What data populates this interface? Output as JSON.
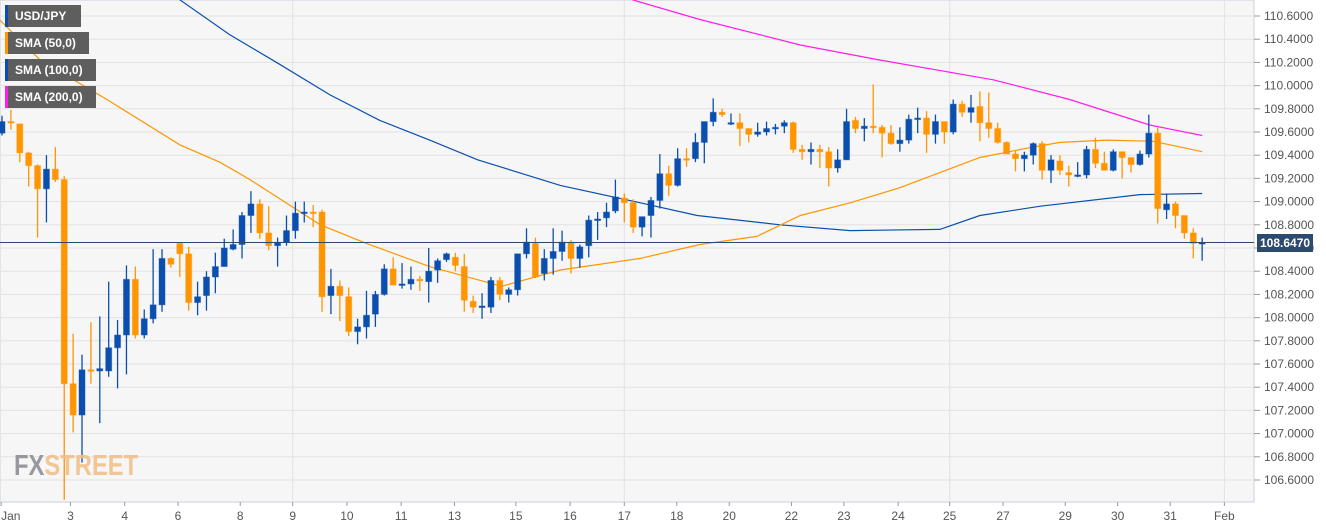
{
  "legend": {
    "symbol": "USD/JPY",
    "sma50": "SMA (50,0)",
    "sma100": "SMA (100,0)",
    "sma200": "SMA (200,0)"
  },
  "watermark": {
    "fx": "FX",
    "street": "STREET"
  },
  "colors": {
    "bull": "#0a4fae",
    "bear": "#ff9500",
    "sma50": "#ff9500",
    "sma100": "#0a4fae",
    "sma200": "#ff1ee8",
    "last_price_line": "#2c4a6e",
    "grid": "#e2e2e4",
    "background": "#f6f6f7"
  },
  "chart_data": {
    "type": "candlestick",
    "title": "USD/JPY",
    "timeframe_note": "",
    "ylim": [
      106.45,
      110.74
    ],
    "y_ticks": [
      "110.6000",
      "110.4000",
      "110.2000",
      "110.0000",
      "109.8000",
      "109.6000",
      "109.4000",
      "109.2000",
      "109.0000",
      "108.8000",
      "108.6000",
      "108.4000",
      "108.2000",
      "108.0000",
      "107.8000",
      "107.6000",
      "107.4000",
      "107.2000",
      "107.0000",
      "106.8000",
      "106.6000"
    ],
    "x_ticks": [
      {
        "label": "Jan",
        "at": -0.1
      },
      {
        "label": "3",
        "at": 7.7
      },
      {
        "label": "4",
        "at": 13.8
      },
      {
        "label": "6",
        "at": 19.8
      },
      {
        "label": "8",
        "at": 26.8
      },
      {
        "label": "9",
        "at": 32.7
      },
      {
        "label": "10",
        "at": 38.8
      },
      {
        "label": "11",
        "at": 44.9
      },
      {
        "label": "13",
        "at": 50.9
      },
      {
        "label": "15",
        "at": 57.8
      },
      {
        "label": "16",
        "at": 63.9
      },
      {
        "label": "17",
        "at": 70.0
      },
      {
        "label": "18",
        "at": 75.9
      },
      {
        "label": "20",
        "at": 81.8
      },
      {
        "label": "22",
        "at": 88.8
      },
      {
        "label": "23",
        "at": 94.7
      },
      {
        "label": "24",
        "at": 100.8
      },
      {
        "label": "25",
        "at": 106.6
      },
      {
        "label": "27",
        "at": 112.6
      },
      {
        "label": "29",
        "at": 119.6
      },
      {
        "label": "30",
        "at": 125.5
      },
      {
        "label": "31",
        "at": 131.4
      },
      {
        "label": "Feb",
        "at": 137.5
      }
    ],
    "vertical_grid_at": [
      "9",
      "17",
      "25",
      "Feb"
    ],
    "last_price": "108.6470",
    "last_price_value": 108.647,
    "candles_ohlc": [
      [
        109.59,
        109.74,
        109.57,
        109.69
      ],
      [
        109.69,
        109.79,
        109.62,
        109.68
      ],
      [
        109.67,
        109.67,
        109.34,
        109.42
      ],
      [
        109.42,
        109.43,
        109.13,
        109.31
      ],
      [
        109.31,
        109.32,
        108.69,
        109.11
      ],
      [
        109.11,
        109.4,
        108.82,
        109.28
      ],
      [
        109.28,
        109.47,
        109.17,
        109.19
      ],
      [
        109.19,
        109.22,
        106.43,
        107.43
      ],
      [
        107.43,
        107.86,
        107.01,
        107.16
      ],
      [
        107.16,
        107.68,
        106.75,
        107.55
      ],
      [
        107.55,
        107.96,
        107.43,
        107.54
      ],
      [
        107.54,
        108.01,
        107.09,
        107.56
      ],
      [
        107.54,
        108.31,
        107.49,
        107.74
      ],
      [
        107.74,
        107.98,
        107.39,
        107.85
      ],
      [
        107.85,
        108.45,
        107.51,
        108.33
      ],
      [
        108.33,
        108.44,
        107.82,
        107.85
      ],
      [
        107.85,
        108.07,
        107.82,
        107.99
      ],
      [
        107.99,
        108.59,
        107.95,
        108.11
      ],
      [
        108.11,
        108.59,
        108.05,
        108.51
      ],
      [
        108.51,
        108.52,
        108.43,
        108.46
      ],
      [
        108.64,
        108.64,
        108.35,
        108.55
      ],
      [
        108.55,
        108.61,
        108.06,
        108.13
      ],
      [
        108.13,
        108.31,
        108.02,
        108.18
      ],
      [
        108.19,
        108.4,
        108.06,
        108.35
      ],
      [
        108.35,
        108.56,
        108.21,
        108.44
      ],
      [
        108.44,
        108.68,
        108.44,
        108.6
      ],
      [
        108.59,
        108.76,
        108.58,
        108.63
      ],
      [
        108.63,
        108.91,
        108.51,
        108.88
      ],
      [
        108.88,
        109.09,
        108.73,
        108.98
      ],
      [
        108.98,
        109.02,
        108.68,
        108.73
      ],
      [
        108.73,
        108.96,
        108.58,
        108.62
      ],
      [
        108.62,
        108.69,
        108.44,
        108.65
      ],
      [
        108.65,
        108.88,
        108.62,
        108.75
      ],
      [
        108.75,
        109.0,
        108.68,
        108.9
      ],
      [
        108.9,
        109.0,
        108.82,
        108.91
      ],
      [
        108.91,
        108.97,
        108.78,
        108.9
      ],
      [
        108.91,
        108.93,
        108.05,
        108.18
      ],
      [
        108.19,
        108.42,
        108.03,
        108.27
      ],
      [
        108.27,
        108.32,
        107.97,
        108.19
      ],
      [
        108.18,
        108.26,
        107.84,
        107.88
      ],
      [
        107.88,
        107.99,
        107.77,
        107.92
      ],
      [
        107.92,
        108.23,
        107.82,
        108.02
      ],
      [
        108.03,
        108.23,
        107.92,
        108.2
      ],
      [
        108.2,
        108.46,
        108.19,
        108.42
      ],
      [
        108.42,
        108.52,
        108.28,
        108.28
      ],
      [
        108.28,
        108.47,
        108.25,
        108.29
      ],
      [
        108.29,
        108.44,
        108.24,
        108.33
      ],
      [
        108.33,
        108.36,
        108.23,
        108.32
      ],
      [
        108.31,
        108.6,
        108.13,
        108.4
      ],
      [
        108.41,
        108.51,
        108.3,
        108.49
      ],
      [
        108.5,
        108.56,
        108.48,
        108.55
      ],
      [
        108.52,
        108.56,
        108.4,
        108.45
      ],
      [
        108.44,
        108.55,
        108.05,
        108.15
      ],
      [
        108.14,
        108.19,
        108.04,
        108.09
      ],
      [
        108.09,
        108.21,
        107.99,
        108.1
      ],
      [
        108.09,
        108.35,
        108.04,
        108.32
      ],
      [
        108.32,
        108.35,
        108.15,
        108.2
      ],
      [
        108.2,
        108.26,
        108.13,
        108.24
      ],
      [
        108.24,
        108.55,
        108.19,
        108.55
      ],
      [
        108.55,
        108.77,
        108.51,
        108.65
      ],
      [
        108.64,
        108.69,
        108.34,
        108.35
      ],
      [
        108.38,
        108.59,
        108.32,
        108.51
      ],
      [
        108.51,
        108.77,
        108.37,
        108.57
      ],
      [
        108.57,
        108.75,
        108.49,
        108.65
      ],
      [
        108.65,
        108.67,
        108.38,
        108.51
      ],
      [
        108.51,
        108.63,
        108.43,
        108.61
      ],
      [
        108.62,
        108.88,
        108.52,
        108.84
      ],
      [
        108.84,
        108.91,
        108.67,
        108.85
      ],
      [
        108.86,
        108.99,
        108.78,
        108.91
      ],
      [
        108.92,
        109.19,
        108.9,
        109.04
      ],
      [
        109.03,
        109.07,
        108.82,
        108.99
      ],
      [
        108.99,
        109.02,
        108.73,
        108.78
      ],
      [
        108.78,
        108.87,
        108.7,
        108.87
      ],
      [
        108.88,
        109.04,
        108.69,
        109.01
      ],
      [
        109.01,
        109.41,
        108.94,
        109.24
      ],
      [
        109.24,
        109.31,
        109.05,
        109.14
      ],
      [
        109.14,
        109.46,
        109.13,
        109.37
      ],
      [
        109.37,
        109.46,
        109.3,
        109.36
      ],
      [
        109.37,
        109.59,
        109.34,
        109.51
      ],
      [
        109.51,
        109.69,
        109.33,
        109.69
      ],
      [
        109.69,
        109.89,
        109.65,
        109.77
      ],
      [
        109.77,
        109.8,
        109.73,
        109.75
      ],
      [
        109.67,
        109.76,
        109.66,
        109.68
      ],
      [
        109.68,
        109.76,
        109.48,
        109.63
      ],
      [
        109.63,
        109.63,
        109.51,
        109.58
      ],
      [
        109.58,
        109.68,
        109.56,
        109.6
      ],
      [
        109.6,
        109.69,
        109.57,
        109.63
      ],
      [
        109.63,
        109.67,
        109.58,
        109.64
      ],
      [
        109.65,
        109.7,
        109.59,
        109.68
      ],
      [
        109.68,
        109.69,
        109.42,
        109.45
      ],
      [
        109.45,
        109.49,
        109.36,
        109.43
      ],
      [
        109.43,
        109.51,
        109.32,
        109.45
      ],
      [
        109.45,
        109.49,
        109.29,
        109.43
      ],
      [
        109.43,
        109.47,
        109.13,
        109.29
      ],
      [
        109.29,
        109.45,
        109.25,
        109.36
      ],
      [
        109.36,
        109.8,
        109.36,
        109.69
      ],
      [
        109.7,
        109.73,
        109.59,
        109.63
      ],
      [
        109.63,
        109.72,
        109.52,
        109.65
      ],
      [
        109.65,
        110.01,
        109.59,
        109.64
      ],
      [
        109.64,
        109.66,
        109.38,
        109.59
      ],
      [
        109.59,
        109.66,
        109.49,
        109.5
      ],
      [
        109.5,
        109.64,
        109.43,
        109.53
      ],
      [
        109.53,
        109.75,
        109.5,
        109.71
      ],
      [
        109.71,
        109.81,
        109.59,
        109.72
      ],
      [
        109.72,
        109.78,
        109.42,
        109.58
      ],
      [
        109.58,
        109.75,
        109.5,
        109.69
      ],
      [
        109.69,
        109.69,
        109.5,
        109.6
      ],
      [
        109.6,
        109.88,
        109.58,
        109.84
      ],
      [
        109.84,
        109.87,
        109.73,
        109.77
      ],
      [
        109.77,
        109.92,
        109.68,
        109.81
      ],
      [
        109.82,
        109.95,
        109.52,
        109.68
      ],
      [
        109.68,
        109.94,
        109.55,
        109.63
      ],
      [
        109.63,
        109.68,
        109.5,
        109.51
      ],
      [
        109.51,
        109.52,
        109.41,
        109.41
      ],
      [
        109.41,
        109.44,
        109.26,
        109.37
      ],
      [
        109.37,
        109.43,
        109.26,
        109.4
      ],
      [
        109.4,
        109.51,
        109.32,
        109.5
      ],
      [
        109.5,
        109.52,
        109.19,
        109.27
      ],
      [
        109.27,
        109.4,
        109.16,
        109.36
      ],
      [
        109.35,
        109.4,
        109.23,
        109.27
      ],
      [
        109.25,
        109.31,
        109.13,
        109.23
      ],
      [
        109.22,
        109.34,
        109.21,
        109.23
      ],
      [
        109.23,
        109.48,
        109.2,
        109.45
      ],
      [
        109.45,
        109.55,
        109.29,
        109.33
      ],
      [
        109.33,
        109.43,
        109.27,
        109.27
      ],
      [
        109.27,
        109.45,
        109.26,
        109.43
      ],
      [
        109.43,
        109.43,
        109.2,
        109.38
      ],
      [
        109.38,
        109.38,
        109.25,
        109.32
      ],
      [
        109.32,
        109.44,
        109.31,
        109.41
      ],
      [
        109.41,
        109.75,
        109.38,
        109.59
      ],
      [
        109.59,
        109.64,
        108.81,
        108.94
      ],
      [
        108.93,
        109.07,
        108.85,
        108.98
      ],
      [
        108.98,
        109.0,
        108.77,
        108.88
      ],
      [
        108.88,
        108.88,
        108.68,
        108.73
      ],
      [
        108.73,
        108.77,
        108.51,
        108.64
      ],
      [
        108.64,
        108.69,
        108.49,
        108.647
      ]
    ],
    "sma50": [
      [
        -0.3,
        110.57
      ],
      [
        4.3,
        110.22
      ],
      [
        11.8,
        109.88
      ],
      [
        20,
        109.49
      ],
      [
        24.5,
        109.34
      ],
      [
        27.9,
        109.19
      ],
      [
        35.8,
        108.8
      ],
      [
        41,
        108.64
      ],
      [
        48.1,
        108.44
      ],
      [
        56.2,
        108.27
      ],
      [
        62.8,
        108.41
      ],
      [
        71.8,
        108.51
      ],
      [
        78.5,
        108.63
      ],
      [
        84.9,
        108.7
      ],
      [
        89.8,
        108.88
      ],
      [
        95.4,
        108.99
      ],
      [
        101,
        109.12
      ],
      [
        110,
        109.38
      ],
      [
        115.3,
        109.46
      ],
      [
        119,
        109.51
      ],
      [
        124.3,
        109.53
      ],
      [
        129.5,
        109.52
      ],
      [
        135,
        109.43
      ]
    ],
    "sma100": [
      [
        20,
        110.74
      ],
      [
        25.6,
        110.44
      ],
      [
        31.3,
        110.18
      ],
      [
        36.9,
        109.92
      ],
      [
        42.5,
        109.7
      ],
      [
        48.1,
        109.53
      ],
      [
        53.5,
        109.36
      ],
      [
        62.8,
        109.14
      ],
      [
        71.8,
        108.99
      ],
      [
        78.2,
        108.88
      ],
      [
        87.5,
        108.8
      ],
      [
        95.4,
        108.75
      ],
      [
        105.5,
        108.76
      ],
      [
        110,
        108.88
      ],
      [
        116.8,
        108.96
      ],
      [
        128,
        109.06
      ],
      [
        135,
        109.07
      ]
    ],
    "sma200": [
      [
        70.9,
        110.74
      ],
      [
        78.5,
        110.57
      ],
      [
        89.8,
        110.35
      ],
      [
        98.8,
        110.22
      ],
      [
        111.5,
        110.05
      ],
      [
        120.1,
        109.88
      ],
      [
        129.1,
        109.66
      ],
      [
        135,
        109.57
      ]
    ]
  }
}
